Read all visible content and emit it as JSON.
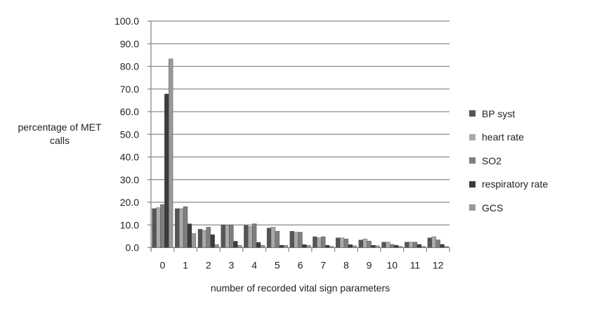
{
  "chart_data": {
    "type": "bar",
    "title": "",
    "xlabel": "number of recorded vital sign parameters",
    "ylabel": "percentage of MET calls",
    "ylim": [
      0,
      100
    ],
    "yticks": [
      "0.0",
      "10.0",
      "20.0",
      "30.0",
      "40.0",
      "50.0",
      "60.0",
      "70.0",
      "80.0",
      "90.0",
      "100.0"
    ],
    "grid": true,
    "legend_position": "right",
    "categories": [
      "0",
      "1",
      "2",
      "3",
      "4",
      "5",
      "6",
      "7",
      "8",
      "9",
      "10",
      "11",
      "12"
    ],
    "series": [
      {
        "name": "BP syst",
        "color": "#555555",
        "values": [
          17.2,
          17.2,
          8.1,
          10.0,
          9.8,
          8.6,
          7.2,
          4.8,
          4.3,
          3.3,
          2.4,
          2.4,
          4.3
        ]
      },
      {
        "name": "heart rate",
        "color": "#aaaaaa",
        "values": [
          17.6,
          17.2,
          7.6,
          10.0,
          9.3,
          9.0,
          6.8,
          4.3,
          4.3,
          3.8,
          2.4,
          2.4,
          4.8
        ]
      },
      {
        "name": "SO2",
        "color": "#7f7f7f",
        "values": [
          19.0,
          18.1,
          9.0,
          10.0,
          10.5,
          7.2,
          6.8,
          4.8,
          3.8,
          2.9,
          1.4,
          2.4,
          3.4
        ]
      },
      {
        "name": "respiratory rate",
        "color": "#3b3b3b",
        "values": [
          67.8,
          10.5,
          5.7,
          2.8,
          2.3,
          1.0,
          1.3,
          1.0,
          1.3,
          1.0,
          1.0,
          1.4,
          1.4
        ]
      },
      {
        "name": "GCS",
        "color": "#999999",
        "values": [
          83.3,
          6.2,
          1.3,
          1.0,
          1.0,
          1.0,
          1.0,
          0.5,
          0.8,
          0.8,
          0.5,
          0.5,
          0.5
        ]
      }
    ]
  }
}
